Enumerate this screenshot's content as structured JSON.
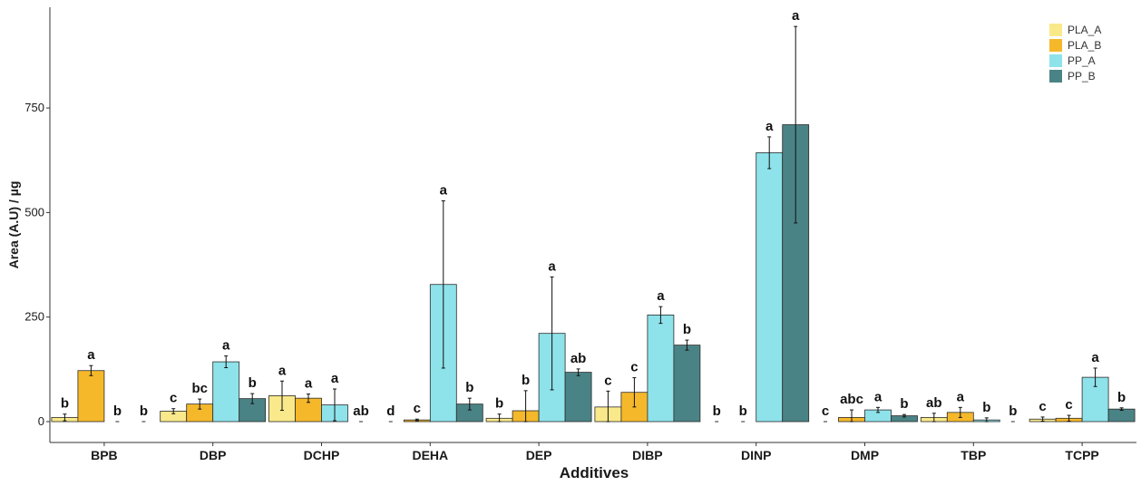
{
  "chart_data": {
    "type": "bar",
    "xlabel": "Additives",
    "ylabel": "Area (A.U) / µg",
    "ylim": [
      0,
      960
    ],
    "yticks": [
      0,
      250,
      500,
      750
    ],
    "grid": false,
    "legend_position": "top-right",
    "colors": {
      "PLA_A": "#f9e98a",
      "PLA_B": "#f5b82a",
      "PP_A": "#8ee2ea",
      "PP_B": "#4a8385"
    },
    "categories": [
      "BPB",
      "DBP",
      "DCHP",
      "DEHA",
      "DEP",
      "DIBP",
      "DINP",
      "DMP",
      "TBP",
      "TCPP"
    ],
    "series": [
      {
        "name": "PLA_A",
        "values": [
          10,
          25,
          62,
          0,
          8,
          35,
          0,
          0,
          10,
          6
        ],
        "errors": [
          8,
          6,
          35,
          0,
          10,
          38,
          0,
          0,
          10,
          5
        ],
        "letters": [
          "b",
          "c",
          "a",
          "d",
          "b",
          "c",
          "b",
          "c",
          "ab",
          "c"
        ]
      },
      {
        "name": "PLA_B",
        "values": [
          122,
          42,
          56,
          4,
          26,
          70,
          0,
          10,
          22,
          8
        ],
        "errors": [
          12,
          12,
          10,
          2,
          48,
          35,
          0,
          18,
          12,
          7
        ],
        "letters": [
          "a",
          "bc",
          "a",
          "c",
          "b",
          "c",
          "b",
          "abc",
          "a",
          "c"
        ]
      },
      {
        "name": "PP_A",
        "values": [
          0,
          143,
          40,
          328,
          211,
          255,
          643,
          28,
          4,
          106
        ],
        "errors": [
          0,
          14,
          38,
          200,
          135,
          20,
          38,
          6,
          5,
          22
        ],
        "letters": [
          "b",
          "a",
          "a",
          "a",
          "a",
          "a",
          "a",
          "a",
          "b",
          "a"
        ]
      },
      {
        "name": "PP_B",
        "values": [
          0,
          55,
          0,
          42,
          118,
          183,
          710,
          14,
          0,
          30
        ],
        "errors": [
          0,
          12,
          0,
          14,
          8,
          12,
          235,
          3,
          0,
          3
        ],
        "letters": [
          "b",
          "b",
          "ab",
          "b",
          "ab",
          "b",
          "a",
          "b",
          "b",
          "b"
        ]
      }
    ]
  }
}
